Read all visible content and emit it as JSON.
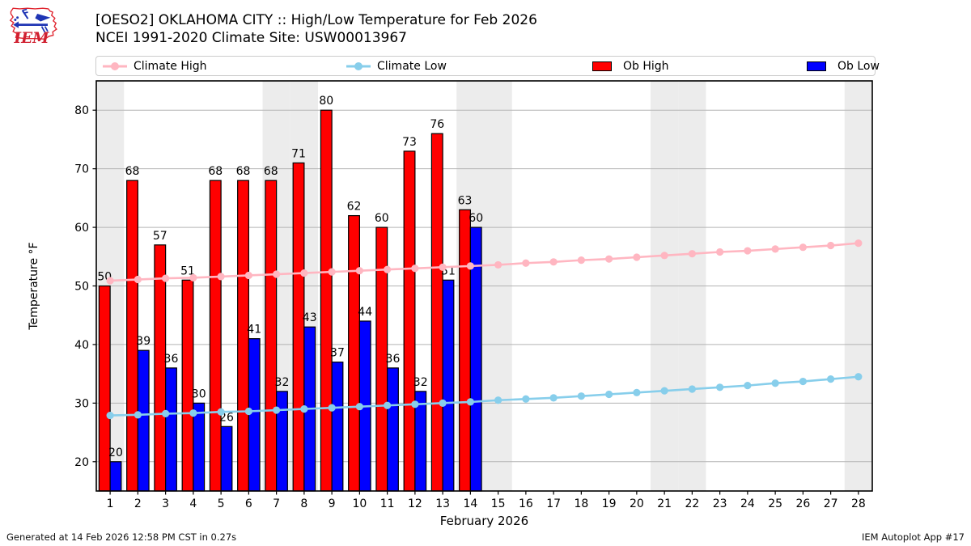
{
  "header": {
    "title_line1": "[OESO2] OKLAHOMA CITY :: High/Low Temperature for Feb 2026",
    "title_line2": "NCEI 1991-2020 Climate Site: USW00013967",
    "logo_text": "IEM"
  },
  "legend": [
    {
      "label": "Climate High",
      "type": "line",
      "color": "#ffb6c1"
    },
    {
      "label": "Climate Low",
      "type": "line",
      "color": "#87ceeb"
    },
    {
      "label": "Ob High",
      "type": "rect",
      "color": "#ff0000"
    },
    {
      "label": "Ob Low",
      "type": "rect",
      "color": "#0000ff"
    }
  ],
  "footer": {
    "left": "Generated at 14 Feb 2026 12:58 PM CST in 0.27s",
    "right": "IEM Autoplot App #17"
  },
  "chart_data": {
    "type": "bar",
    "title": "[OESO2] OKLAHOMA CITY :: High/Low Temperature for Feb 2026",
    "subtitle": "NCEI 1991-2020 Climate Site: USW00013967",
    "xlabel": "February 2026",
    "ylabel": "Temperature °F",
    "ylim": [
      15,
      85
    ],
    "yticks": [
      20,
      30,
      40,
      50,
      60,
      70,
      80
    ],
    "days": [
      1,
      2,
      3,
      4,
      5,
      6,
      7,
      8,
      9,
      10,
      11,
      12,
      13,
      14,
      15,
      16,
      17,
      18,
      19,
      20,
      21,
      22,
      23,
      24,
      25,
      26,
      27,
      28
    ],
    "weekend_days": [
      1,
      7,
      8,
      14,
      15,
      21,
      22,
      28
    ],
    "grid": "horizontal",
    "legend_position": "top",
    "colors": {
      "ob_high": "#ff0000",
      "ob_low": "#0000ff",
      "climate_high": "#ffb6c1",
      "climate_low": "#87ceeb",
      "weekend_band": "#ececec",
      "gridline": "#b3b3b3",
      "bar_edge": "#000000"
    },
    "series": [
      {
        "name": "Ob High",
        "type": "bar",
        "color": "#ff0000",
        "values": [
          50,
          68,
          57,
          51,
          68,
          68,
          68,
          71,
          80,
          62,
          60,
          73,
          76,
          63
        ]
      },
      {
        "name": "Ob Low",
        "type": "bar",
        "color": "#0000ff",
        "values": [
          20,
          39,
          36,
          30,
          26,
          41,
          32,
          43,
          37,
          44,
          36,
          32,
          51,
          60
        ]
      },
      {
        "name": "Climate High",
        "type": "line",
        "color": "#ffb6c1",
        "values": [
          50.9,
          51.1,
          51.3,
          51.4,
          51.6,
          51.8,
          52.0,
          52.2,
          52.4,
          52.6,
          52.8,
          53.0,
          53.2,
          53.4,
          53.6,
          53.9,
          54.1,
          54.4,
          54.6,
          54.9,
          55.2,
          55.5,
          55.8,
          56.0,
          56.3,
          56.6,
          56.9,
          57.3
        ]
      },
      {
        "name": "Climate Low",
        "type": "line",
        "color": "#87ceeb",
        "values": [
          27.9,
          28.0,
          28.2,
          28.3,
          28.5,
          28.6,
          28.8,
          29.0,
          29.2,
          29.4,
          29.6,
          29.8,
          30.0,
          30.2,
          30.5,
          30.7,
          30.9,
          31.2,
          31.5,
          31.8,
          32.1,
          32.4,
          32.7,
          33.0,
          33.4,
          33.7,
          34.1,
          34.5
        ]
      }
    ]
  }
}
